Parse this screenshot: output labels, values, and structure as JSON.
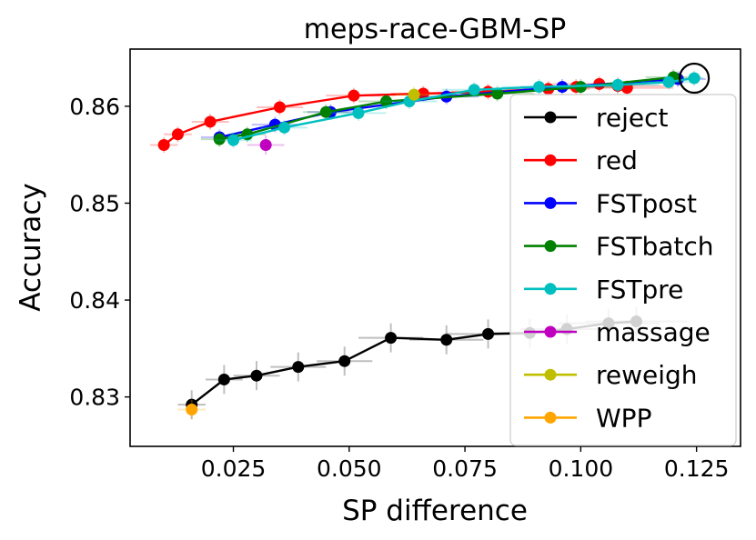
{
  "chart_data": {
    "type": "line",
    "title": "meps-race-GBM-SP",
    "xlabel": "SP difference",
    "ylabel": "Accuracy",
    "xlim": [
      0.0027,
      0.1345
    ],
    "ylim": [
      0.8249,
      0.8659
    ],
    "xticks": [
      0.025,
      0.05,
      0.075,
      0.1,
      0.125
    ],
    "xtick_labels": [
      "0.025",
      "0.050",
      "0.075",
      "0.100",
      "0.125"
    ],
    "yticks": [
      0.83,
      0.84,
      0.85,
      0.86
    ],
    "ytick_labels": [
      "0.83",
      "0.84",
      "0.85",
      "0.86"
    ],
    "legend_position": "right",
    "baseline_marker": {
      "x": 0.1245,
      "y": 0.8629
    },
    "series": [
      {
        "name": "reject",
        "color": "#000000",
        "points": [
          {
            "x": 0.016,
            "y": 0.8292,
            "xerr": 0.003,
            "yerr": 0.0015
          },
          {
            "x": 0.023,
            "y": 0.8318,
            "xerr": 0.004,
            "yerr": 0.0015
          },
          {
            "x": 0.03,
            "y": 0.8322,
            "xerr": 0.005,
            "yerr": 0.0015
          },
          {
            "x": 0.039,
            "y": 0.8331,
            "xerr": 0.006,
            "yerr": 0.0015
          },
          {
            "x": 0.049,
            "y": 0.8337,
            "xerr": 0.006,
            "yerr": 0.0015
          },
          {
            "x": 0.059,
            "y": 0.8361,
            "xerr": 0.007,
            "yerr": 0.0015
          },
          {
            "x": 0.071,
            "y": 0.8359,
            "xerr": 0.008,
            "yerr": 0.0015
          },
          {
            "x": 0.08,
            "y": 0.8365,
            "xerr": 0.009,
            "yerr": 0.0015
          },
          {
            "x": 0.089,
            "y": 0.8366,
            "xerr": 0.009,
            "yerr": 0.0015
          },
          {
            "x": 0.097,
            "y": 0.837,
            "xerr": 0.01,
            "yerr": 0.0015
          },
          {
            "x": 0.106,
            "y": 0.8376,
            "xerr": 0.011,
            "yerr": 0.0015
          },
          {
            "x": 0.112,
            "y": 0.8378,
            "xerr": 0.011,
            "yerr": 0.0015
          }
        ]
      },
      {
        "name": "red",
        "color": "#ff0000",
        "points": [
          {
            "x": 0.01,
            "y": 0.856,
            "xerr": 0.003,
            "yerr": 0.0008
          },
          {
            "x": 0.013,
            "y": 0.8571,
            "xerr": 0.003,
            "yerr": 0.0008
          },
          {
            "x": 0.02,
            "y": 0.8584,
            "xerr": 0.004,
            "yerr": 0.0008
          },
          {
            "x": 0.035,
            "y": 0.8599,
            "xerr": 0.005,
            "yerr": 0.0008
          },
          {
            "x": 0.051,
            "y": 0.8611,
            "xerr": 0.006,
            "yerr": 0.0008
          },
          {
            "x": 0.066,
            "y": 0.8613,
            "xerr": 0.007,
            "yerr": 0.0008
          },
          {
            "x": 0.08,
            "y": 0.8615,
            "xerr": 0.008,
            "yerr": 0.0008
          },
          {
            "x": 0.093,
            "y": 0.8618,
            "xerr": 0.009,
            "yerr": 0.0008
          },
          {
            "x": 0.099,
            "y": 0.862,
            "xerr": 0.01,
            "yerr": 0.0008
          },
          {
            "x": 0.104,
            "y": 0.8623,
            "xerr": 0.01,
            "yerr": 0.0008
          },
          {
            "x": 0.108,
            "y": 0.8621,
            "xerr": 0.01,
            "yerr": 0.0008
          },
          {
            "x": 0.11,
            "y": 0.8619,
            "xerr": 0.01,
            "yerr": 0.0008
          }
        ]
      },
      {
        "name": "FSTpost",
        "color": "#0000ff",
        "points": [
          {
            "x": 0.022,
            "y": 0.8568,
            "xerr": 0.004,
            "yerr": 0.0008
          },
          {
            "x": 0.034,
            "y": 0.8581,
            "xerr": 0.005,
            "yerr": 0.0008
          },
          {
            "x": 0.046,
            "y": 0.8594,
            "xerr": 0.005,
            "yerr": 0.0008
          },
          {
            "x": 0.071,
            "y": 0.861,
            "xerr": 0.007,
            "yerr": 0.0008
          },
          {
            "x": 0.096,
            "y": 0.862,
            "xerr": 0.009,
            "yerr": 0.0008
          },
          {
            "x": 0.121,
            "y": 0.8628,
            "xerr": 0.006,
            "yerr": 0.0008
          }
        ]
      },
      {
        "name": "FSTbatch",
        "color": "#008000",
        "points": [
          {
            "x": 0.022,
            "y": 0.8566,
            "xerr": 0.004,
            "yerr": 0.0008
          },
          {
            "x": 0.028,
            "y": 0.8571,
            "xerr": 0.004,
            "yerr": 0.0008
          },
          {
            "x": 0.045,
            "y": 0.8594,
            "xerr": 0.005,
            "yerr": 0.0008
          },
          {
            "x": 0.058,
            "y": 0.8605,
            "xerr": 0.006,
            "yerr": 0.0008
          },
          {
            "x": 0.082,
            "y": 0.8613,
            "xerr": 0.008,
            "yerr": 0.0008
          },
          {
            "x": 0.1,
            "y": 0.862,
            "xerr": 0.009,
            "yerr": 0.0008
          },
          {
            "x": 0.12,
            "y": 0.863,
            "xerr": 0.006,
            "yerr": 0.0008
          }
        ]
      },
      {
        "name": "FSTpre",
        "color": "#00bfbf",
        "points": [
          {
            "x": 0.025,
            "y": 0.8565,
            "xerr": 0.004,
            "yerr": 0.0008
          },
          {
            "x": 0.036,
            "y": 0.8578,
            "xerr": 0.005,
            "yerr": 0.0008
          },
          {
            "x": 0.052,
            "y": 0.8593,
            "xerr": 0.006,
            "yerr": 0.0008
          },
          {
            "x": 0.063,
            "y": 0.8605,
            "xerr": 0.006,
            "yerr": 0.0008
          },
          {
            "x": 0.077,
            "y": 0.8617,
            "xerr": 0.007,
            "yerr": 0.0008
          },
          {
            "x": 0.091,
            "y": 0.862,
            "xerr": 0.008,
            "yerr": 0.0008
          },
          {
            "x": 0.108,
            "y": 0.8622,
            "xerr": 0.009,
            "yerr": 0.0008
          },
          {
            "x": 0.119,
            "y": 0.8625,
            "xerr": 0.006,
            "yerr": 0.0008
          },
          {
            "x": 0.1245,
            "y": 0.8629,
            "xerr": 0.002,
            "yerr": 0.0008
          }
        ]
      },
      {
        "name": "massage",
        "color": "#bf00bf",
        "points": [
          {
            "x": 0.032,
            "y": 0.856,
            "xerr": 0.004,
            "yerr": 0.001
          }
        ]
      },
      {
        "name": "reweigh",
        "color": "#bfbf00",
        "points": [
          {
            "x": 0.064,
            "y": 0.8612,
            "xerr": 0.004,
            "yerr": 0.0008
          }
        ]
      },
      {
        "name": "WPP",
        "color": "#ffa500",
        "points": [
          {
            "x": 0.016,
            "y": 0.8287,
            "xerr": 0.003,
            "yerr": 0.001
          }
        ]
      }
    ]
  }
}
